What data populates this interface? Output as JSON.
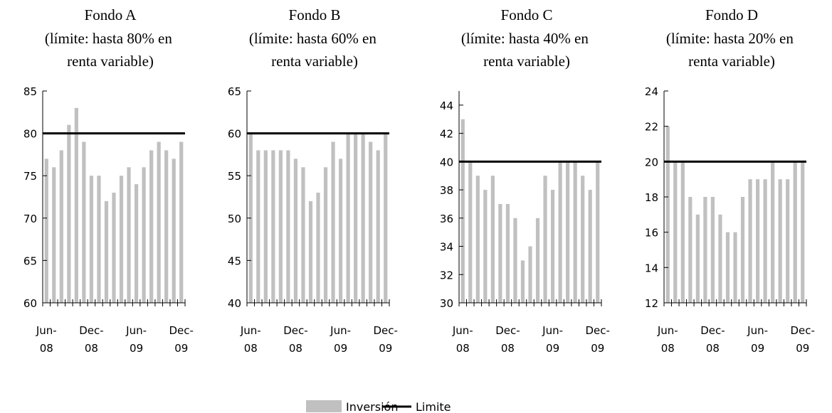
{
  "chart_data": [
    {
      "type": "bar",
      "title": "Fondo A",
      "subtitle": "(límite: hasta 80% en renta variable)",
      "categories": [
        "Jun-08",
        null,
        null,
        null,
        null,
        null,
        "Dec-08",
        null,
        null,
        null,
        null,
        null,
        "Jun-09",
        null,
        null,
        null,
        null,
        null,
        "Dec-09"
      ],
      "series": [
        {
          "name": "Inversión",
          "color": "#c0c0c0",
          "values": [
            77,
            76,
            78,
            81,
            83,
            79,
            75,
            75,
            72,
            73,
            75,
            76,
            74,
            76,
            78,
            79,
            78,
            77,
            79
          ]
        },
        {
          "name": "Limite",
          "color": "#000000",
          "values": [
            80,
            80,
            80,
            80,
            80,
            80,
            80,
            80,
            80,
            80,
            80,
            80,
            80,
            80,
            80,
            80,
            80,
            80,
            80
          ]
        }
      ],
      "ylim": [
        60,
        85
      ],
      "yticks": [
        60,
        65,
        70,
        75,
        80,
        85
      ]
    },
    {
      "type": "bar",
      "title": "Fondo B",
      "subtitle": "(límite: hasta 60% en renta variable)",
      "categories": [
        "Jun-08",
        null,
        null,
        null,
        null,
        null,
        "Dec-08",
        null,
        null,
        null,
        null,
        null,
        "Jun-09",
        null,
        null,
        null,
        null,
        null,
        "Dec-09"
      ],
      "series": [
        {
          "name": "Inversión",
          "color": "#c0c0c0",
          "values": [
            60,
            58,
            58,
            58,
            58,
            58,
            57,
            56,
            52,
            53,
            56,
            59,
            57,
            60,
            60,
            60,
            59,
            58,
            60
          ]
        },
        {
          "name": "Limite",
          "color": "#000000",
          "values": [
            60,
            60,
            60,
            60,
            60,
            60,
            60,
            60,
            60,
            60,
            60,
            60,
            60,
            60,
            60,
            60,
            60,
            60,
            60
          ]
        }
      ],
      "ylim": [
        40,
        65
      ],
      "yticks": [
        40,
        45,
        50,
        55,
        60,
        65
      ]
    },
    {
      "type": "bar",
      "title": "Fondo C",
      "subtitle": "(límite: hasta 40% en renta variable)",
      "categories": [
        "Jun-08",
        null,
        null,
        null,
        null,
        null,
        "Dec-08",
        null,
        null,
        null,
        null,
        null,
        "Jun-09",
        null,
        null,
        null,
        null,
        null,
        "Dec-09"
      ],
      "series": [
        {
          "name": "Inversión",
          "color": "#c0c0c0",
          "values": [
            43,
            40,
            39,
            38,
            39,
            37,
            37,
            36,
            33,
            34,
            36,
            39,
            38,
            40,
            40,
            40,
            39,
            38,
            40
          ]
        },
        {
          "name": "Limite",
          "color": "#000000",
          "values": [
            40,
            40,
            40,
            40,
            40,
            40,
            40,
            40,
            40,
            40,
            40,
            40,
            40,
            40,
            40,
            40,
            40,
            40,
            40
          ]
        }
      ],
      "ylim": [
        30,
        45
      ],
      "yticks": [
        30,
        32,
        34,
        36,
        38,
        40,
        42,
        44
      ]
    },
    {
      "type": "bar",
      "title": "Fondo D",
      "subtitle": "(límite: hasta 20% en renta variable)",
      "categories": [
        "Jun-08",
        null,
        null,
        null,
        null,
        null,
        "Dec-08",
        null,
        null,
        null,
        null,
        null,
        "Jun-09",
        null,
        null,
        null,
        null,
        null,
        "Dec-09"
      ],
      "series": [
        {
          "name": "Inversión",
          "color": "#c0c0c0",
          "values": [
            22,
            20,
            20,
            18,
            17,
            18,
            18,
            17,
            16,
            16,
            18,
            19,
            19,
            19,
            20,
            19,
            19,
            20,
            20
          ]
        },
        {
          "name": "Limite",
          "color": "#000000",
          "values": [
            20,
            20,
            20,
            20,
            20,
            20,
            20,
            20,
            20,
            20,
            20,
            20,
            20,
            20,
            20,
            20,
            20,
            20,
            20
          ]
        }
      ],
      "ylim": [
        12,
        24
      ],
      "yticks": [
        12,
        14,
        16,
        18,
        20,
        22,
        24
      ]
    }
  ]
}
